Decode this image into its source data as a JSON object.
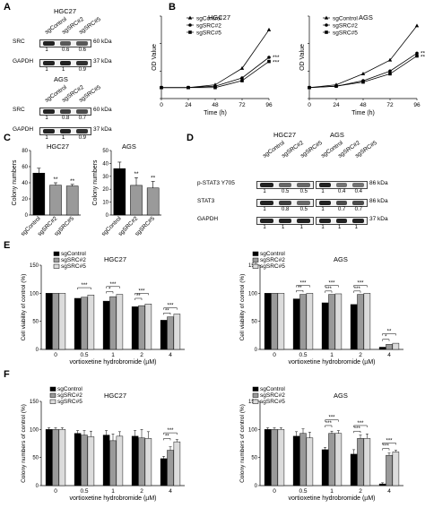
{
  "panels": {
    "A": {
      "letter": "A",
      "blots": [
        {
          "cell_line": "HGC27",
          "lanes": [
            "sgControl",
            "sgSRC#2",
            "sgSRC#5"
          ],
          "rows": [
            {
              "protein": "SRC",
              "size": "60 kDa",
              "quant": [
                "1",
                "0.6",
                "0.6"
              ],
              "intensity": [
                1,
                0.6,
                0.6
              ]
            },
            {
              "protein": "GAPDH",
              "size": "37 kDa",
              "quant": [
                "1",
                "1",
                "0.9"
              ],
              "intensity": [
                1,
                1,
                0.9
              ]
            }
          ]
        },
        {
          "cell_line": "AGS",
          "lanes": [
            "sgControl",
            "sgSRC#2",
            "sgSRC#5"
          ],
          "rows": [
            {
              "protein": "SRC",
              "size": "60 kDa",
              "quant": [
                "1",
                "0.8",
                "0.7"
              ],
              "intensity": [
                1,
                0.8,
                0.7
              ]
            },
            {
              "protein": "GAPDH",
              "size": "37 kDa",
              "quant": [
                "1",
                "1",
                "0.9"
              ],
              "intensity": [
                1,
                1,
                0.9
              ]
            }
          ]
        }
      ]
    },
    "B": {
      "letter": "B"
    },
    "C": {
      "letter": "C"
    },
    "D": {
      "letter": "D",
      "blots": [
        {
          "cell_line": "HGC27",
          "lanes": [
            "sgControl",
            "sgSRC#2",
            "sgSRC#5"
          ],
          "rows": [
            {
              "protein": "p-STAT3 Y705",
              "quant": [
                "1",
                "0.5",
                "0.5"
              ],
              "intensity": [
                1,
                0.5,
                0.5
              ]
            },
            {
              "protein": "STAT3",
              "quant": [
                "1",
                "0.8",
                "0.5"
              ],
              "intensity": [
                1,
                0.8,
                0.5
              ]
            },
            {
              "protein": "GAPDH",
              "quant": [
                "1",
                "1",
                "1"
              ],
              "intensity": [
                1,
                1,
                1
              ]
            }
          ]
        },
        {
          "cell_line": "AGS",
          "lanes": [
            "sgControl",
            "sgSRC#2",
            "sgSRC#5"
          ],
          "rows": [
            {
              "protein": "p-STAT3 Y705",
              "size": "86 kDa",
              "quant": [
                "1",
                "0.4",
                "0.4"
              ],
              "intensity": [
                1,
                0.4,
                0.4
              ]
            },
            {
              "protein": "STAT3",
              "size": "86 kDa",
              "quant": [
                "1",
                "0.7",
                "0.7"
              ],
              "intensity": [
                1,
                0.7,
                0.7
              ]
            },
            {
              "protein": "GAPDH",
              "size": "37 kDa",
              "quant": [
                "1",
                "1",
                "1"
              ],
              "intensity": [
                1,
                1,
                1
              ]
            }
          ]
        }
      ]
    },
    "E": {
      "letter": "E"
    },
    "F": {
      "letter": "F"
    }
  },
  "colors": {
    "black": "#000000",
    "dark": "#333333",
    "grey": "#9a9a9a",
    "light": "#dcdcdc",
    "white": "#ffffff"
  },
  "chart_data": [
    {
      "id": "B-HGC27",
      "type": "line",
      "title": "HGC27",
      "xlabel": "Time (h)",
      "ylabel": "OD Value",
      "x": [
        0,
        24,
        48,
        72,
        96
      ],
      "xlim": [
        0,
        96
      ],
      "ylim": [
        0,
        0.6
      ],
      "series": [
        {
          "name": "sgControl",
          "values": [
            0.08,
            0.08,
            0.1,
            0.22,
            0.5
          ]
        },
        {
          "name": "sgSRC#2",
          "values": [
            0.08,
            0.08,
            0.09,
            0.15,
            0.3
          ]
        },
        {
          "name": "sgSRC#5",
          "values": [
            0.08,
            0.08,
            0.08,
            0.13,
            0.27
          ]
        }
      ],
      "significance": [
        "***",
        "***"
      ]
    },
    {
      "id": "B-AGS",
      "type": "line",
      "title": "AGS",
      "xlabel": "Time (h)",
      "ylabel": "OD Value",
      "x": [
        0,
        24,
        48,
        72,
        96
      ],
      "xlim": [
        0,
        96
      ],
      "ylim": [
        0,
        0.6
      ],
      "series": [
        {
          "name": "sgControl",
          "values": [
            0.08,
            0.1,
            0.18,
            0.28,
            0.53
          ]
        },
        {
          "name": "sgSRC#2",
          "values": [
            0.08,
            0.09,
            0.13,
            0.2,
            0.33
          ]
        },
        {
          "name": "sgSRC#5",
          "values": [
            0.08,
            0.09,
            0.12,
            0.18,
            0.31
          ]
        }
      ],
      "significance": [
        "***",
        "***"
      ]
    },
    {
      "id": "C-HGC27",
      "type": "bar",
      "title": "HGC27",
      "ylabel": "Colony numbers",
      "categories": [
        "sgControl",
        "sgSRC#2",
        "sgSRC#5"
      ],
      "values": [
        52,
        37,
        36
      ],
      "errors": [
        6,
        3,
        2
      ],
      "ylim": [
        0,
        80
      ],
      "yticks": [
        0,
        20,
        40,
        60,
        80
      ],
      "significance": [
        "",
        "**",
        "**"
      ]
    },
    {
      "id": "C-AGS",
      "type": "bar",
      "title": "AGS",
      "ylabel": "Colony numbers",
      "categories": [
        "sgControl",
        "sgSRC#2",
        "sgSRC#5"
      ],
      "values": [
        36,
        23,
        21
      ],
      "errors": [
        5,
        6,
        5
      ],
      "ylim": [
        0,
        50
      ],
      "yticks": [
        0,
        10,
        20,
        30,
        40,
        50
      ],
      "significance": [
        "",
        "**",
        "**"
      ]
    },
    {
      "id": "E-HGC27",
      "type": "bar",
      "title": "HGC27",
      "xlabel": "vortioxetine hydrobromide (µM)",
      "ylabel": "Cell viability of control (%)",
      "categories": [
        "0",
        "0.5",
        "1",
        "2",
        "4"
      ],
      "ylim": [
        0,
        150
      ],
      "yticks": [
        0,
        50,
        100,
        150
      ],
      "series": [
        {
          "name": "sgControl",
          "values": [
            100,
            91,
            86,
            76,
            52
          ]
        },
        {
          "name": "sgSRC#2",
          "values": [
            100,
            93,
            94,
            78,
            58
          ]
        },
        {
          "name": "sgSRC#5",
          "values": [
            100,
            97,
            98,
            81,
            63
          ]
        }
      ],
      "brackets": [
        {
          "group": 1,
          "from": 0,
          "to": 2,
          "level": 110,
          "label": "***"
        },
        {
          "group": 2,
          "from": 0,
          "to": 1,
          "level": 103,
          "label": "*"
        },
        {
          "group": 2,
          "from": 0,
          "to": 2,
          "level": 112,
          "label": "***"
        },
        {
          "group": 3,
          "from": 0,
          "to": 1,
          "level": 91,
          "label": "**"
        },
        {
          "group": 3,
          "from": 0,
          "to": 2,
          "level": 100,
          "label": "***"
        },
        {
          "group": 4,
          "from": 0,
          "to": 1,
          "level": 65,
          "label": "**"
        },
        {
          "group": 4,
          "from": 0,
          "to": 2,
          "level": 74,
          "label": "***"
        }
      ]
    },
    {
      "id": "E-AGS",
      "type": "bar",
      "title": "AGS",
      "xlabel": "vortioxetine hydrobromide (µM)",
      "ylabel": "Cell viability of control (%)",
      "categories": [
        "0",
        "0.5",
        "1",
        "2",
        "4"
      ],
      "ylim": [
        0,
        150
      ],
      "yticks": [
        0,
        50,
        100,
        150
      ],
      "series": [
        {
          "name": "sgControl",
          "values": [
            100,
            90,
            83,
            80,
            4
          ]
        },
        {
          "name": "sgSRC#2",
          "values": [
            100,
            98,
            98,
            98,
            9
          ]
        },
        {
          "name": "sgSRC#5",
          "values": [
            100,
            100,
            99,
            100,
            11
          ]
        }
      ],
      "brackets": [
        {
          "group": 1,
          "from": 0,
          "to": 1,
          "level": 105,
          "label": "**"
        },
        {
          "group": 1,
          "from": 0,
          "to": 2,
          "level": 114,
          "label": "***"
        },
        {
          "group": 2,
          "from": 0,
          "to": 1,
          "level": 104,
          "label": "***"
        },
        {
          "group": 2,
          "from": 0,
          "to": 2,
          "level": 114,
          "label": "***"
        },
        {
          "group": 3,
          "from": 0,
          "to": 1,
          "level": 104,
          "label": "***"
        },
        {
          "group": 3,
          "from": 0,
          "to": 2,
          "level": 114,
          "label": "***"
        },
        {
          "group": 4,
          "from": 0,
          "to": 1,
          "level": 18,
          "label": "*"
        },
        {
          "group": 4,
          "from": 0,
          "to": 2,
          "level": 28,
          "label": "**"
        }
      ]
    },
    {
      "id": "F-HGC27",
      "type": "bar",
      "title": "HGC27",
      "xlabel": "vortioxetine hydrobromide (µM)",
      "ylabel": "Colony numbers of control (%)",
      "categories": [
        "0",
        "0.5",
        "1",
        "2",
        "4"
      ],
      "ylim": [
        0,
        150
      ],
      "yticks": [
        0,
        50,
        100,
        150
      ],
      "series": [
        {
          "name": "sgControl",
          "values": [
            100,
            93,
            90,
            88,
            48
          ]
        },
        {
          "name": "sgSRC#2",
          "values": [
            100,
            90,
            80,
            85,
            63
          ]
        },
        {
          "name": "sgSRC#5",
          "values": [
            100,
            87,
            88,
            84,
            78
          ]
        }
      ],
      "errors": [
        [
          3,
          5,
          8,
          10,
          4
        ],
        [
          3,
          8,
          12,
          15,
          6
        ],
        [
          3,
          10,
          8,
          12,
          4
        ]
      ],
      "brackets": [
        {
          "group": 4,
          "from": 0,
          "to": 1,
          "level": 84,
          "label": "**"
        },
        {
          "group": 4,
          "from": 0,
          "to": 2,
          "level": 94,
          "label": "***"
        }
      ]
    },
    {
      "id": "F-AGS",
      "type": "bar",
      "title": "AGS",
      "xlabel": "vortioxetine hydrobromide (µM)",
      "ylabel": "Colony numbers of control (%)",
      "categories": [
        "0",
        "0.5",
        "1",
        "2",
        "4"
      ],
      "ylim": [
        0,
        150
      ],
      "yticks": [
        0,
        50,
        100,
        150
      ],
      "series": [
        {
          "name": "sgControl",
          "values": [
            100,
            88,
            64,
            56,
            3
          ]
        },
        {
          "name": "sgSRC#2",
          "values": [
            100,
            93,
            93,
            84,
            54
          ]
        },
        {
          "name": "sgSRC#5",
          "values": [
            100,
            85,
            93,
            84,
            60
          ]
        }
      ],
      "errors": [
        [
          3,
          8,
          4,
          8,
          2
        ],
        [
          3,
          8,
          4,
          6,
          4
        ],
        [
          3,
          10,
          5,
          8,
          3
        ]
      ],
      "brackets": [
        {
          "group": 2,
          "from": 0,
          "to": 1,
          "level": 107,
          "label": "***"
        },
        {
          "group": 2,
          "from": 0,
          "to": 2,
          "level": 117,
          "label": "***"
        },
        {
          "group": 3,
          "from": 0,
          "to": 1,
          "level": 97,
          "label": "***"
        },
        {
          "group": 3,
          "from": 0,
          "to": 2,
          "level": 107,
          "label": "***"
        },
        {
          "group": 4,
          "from": 0,
          "to": 1,
          "level": 66,
          "label": "***"
        },
        {
          "group": 4,
          "from": 0,
          "to": 2,
          "level": 76,
          "label": "***"
        }
      ]
    }
  ]
}
